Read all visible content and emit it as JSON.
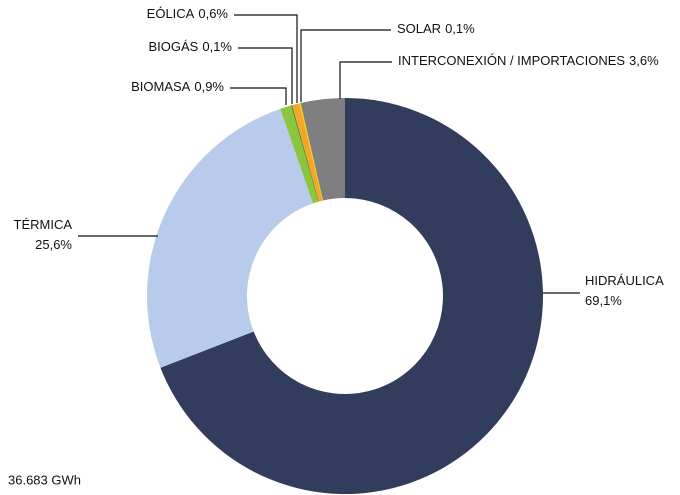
{
  "chart_data": {
    "type": "donut",
    "categories": [
      "HIDRÁULICA",
      "TÉRMICA",
      "BIOMASA",
      "BIOGÁS",
      "EÓLICA",
      "SOLAR",
      "INTERCONEXIÓN / IMPORTACIONES"
    ],
    "values": [
      69.1,
      25.6,
      0.9,
      0.1,
      0.6,
      0.1,
      3.6
    ],
    "value_labels": [
      "69,1%",
      "25,6%",
      "0,9%",
      "0,1%",
      "0,6%",
      "0,1%",
      "3,6%"
    ],
    "colors": [
      "#323d5e",
      "#b8cbea",
      "#8cc63e",
      "#4f8a2b",
      "#f4a52a",
      "#f2d400",
      "#7f7f7f"
    ],
    "annotation": "36.683 GWh"
  }
}
